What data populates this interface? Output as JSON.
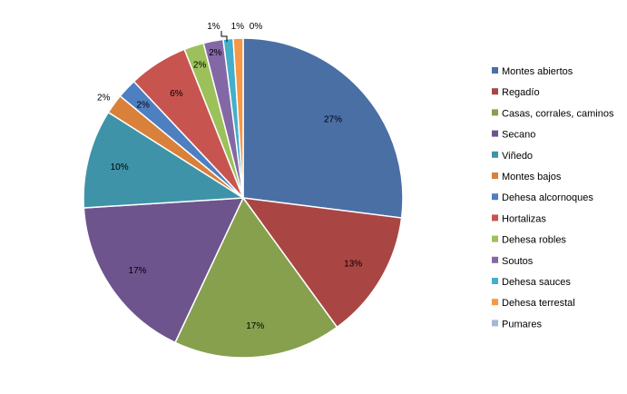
{
  "chart_data": {
    "type": "pie",
    "title": "",
    "legend_position": "right",
    "slices": [
      {
        "label": "Montes abiertos",
        "value": 27,
        "display": "27%",
        "color": "#4A6FA5"
      },
      {
        "label": "Regadío",
        "value": 13,
        "display": "13%",
        "color": "#A94644"
      },
      {
        "label": "Casas, corrales, caminos",
        "value": 17,
        "display": "17%",
        "color": "#86A04E"
      },
      {
        "label": "Secano",
        "value": 17,
        "display": "17%",
        "color": "#6E548D"
      },
      {
        "label": "Viñedo",
        "value": 10,
        "display": "10%",
        "color": "#3F93A8"
      },
      {
        "label": "Montes bajos",
        "value": 2,
        "display": "2%",
        "color": "#D9803A"
      },
      {
        "label": "Dehesa alcornoques",
        "value": 2,
        "display": "2%",
        "color": "#4E7FC1"
      },
      {
        "label": "Hortalizas",
        "value": 6,
        "display": "6%",
        "color": "#C85450"
      },
      {
        "label": "Dehesa robles",
        "value": 2,
        "display": "2%",
        "color": "#9CC15A"
      },
      {
        "label": "Soutos",
        "value": 2,
        "display": "2%",
        "color": "#8468A6"
      },
      {
        "label": "Dehesa sauces",
        "value": 1,
        "display": "1%",
        "color": "#43AFCB"
      },
      {
        "label": "Dehesa terrestal",
        "value": 1,
        "display": "1%",
        "color": "#F79845"
      },
      {
        "label": "Pumares",
        "value": 0,
        "display": "0%",
        "color": "#A4B6D9"
      }
    ]
  }
}
